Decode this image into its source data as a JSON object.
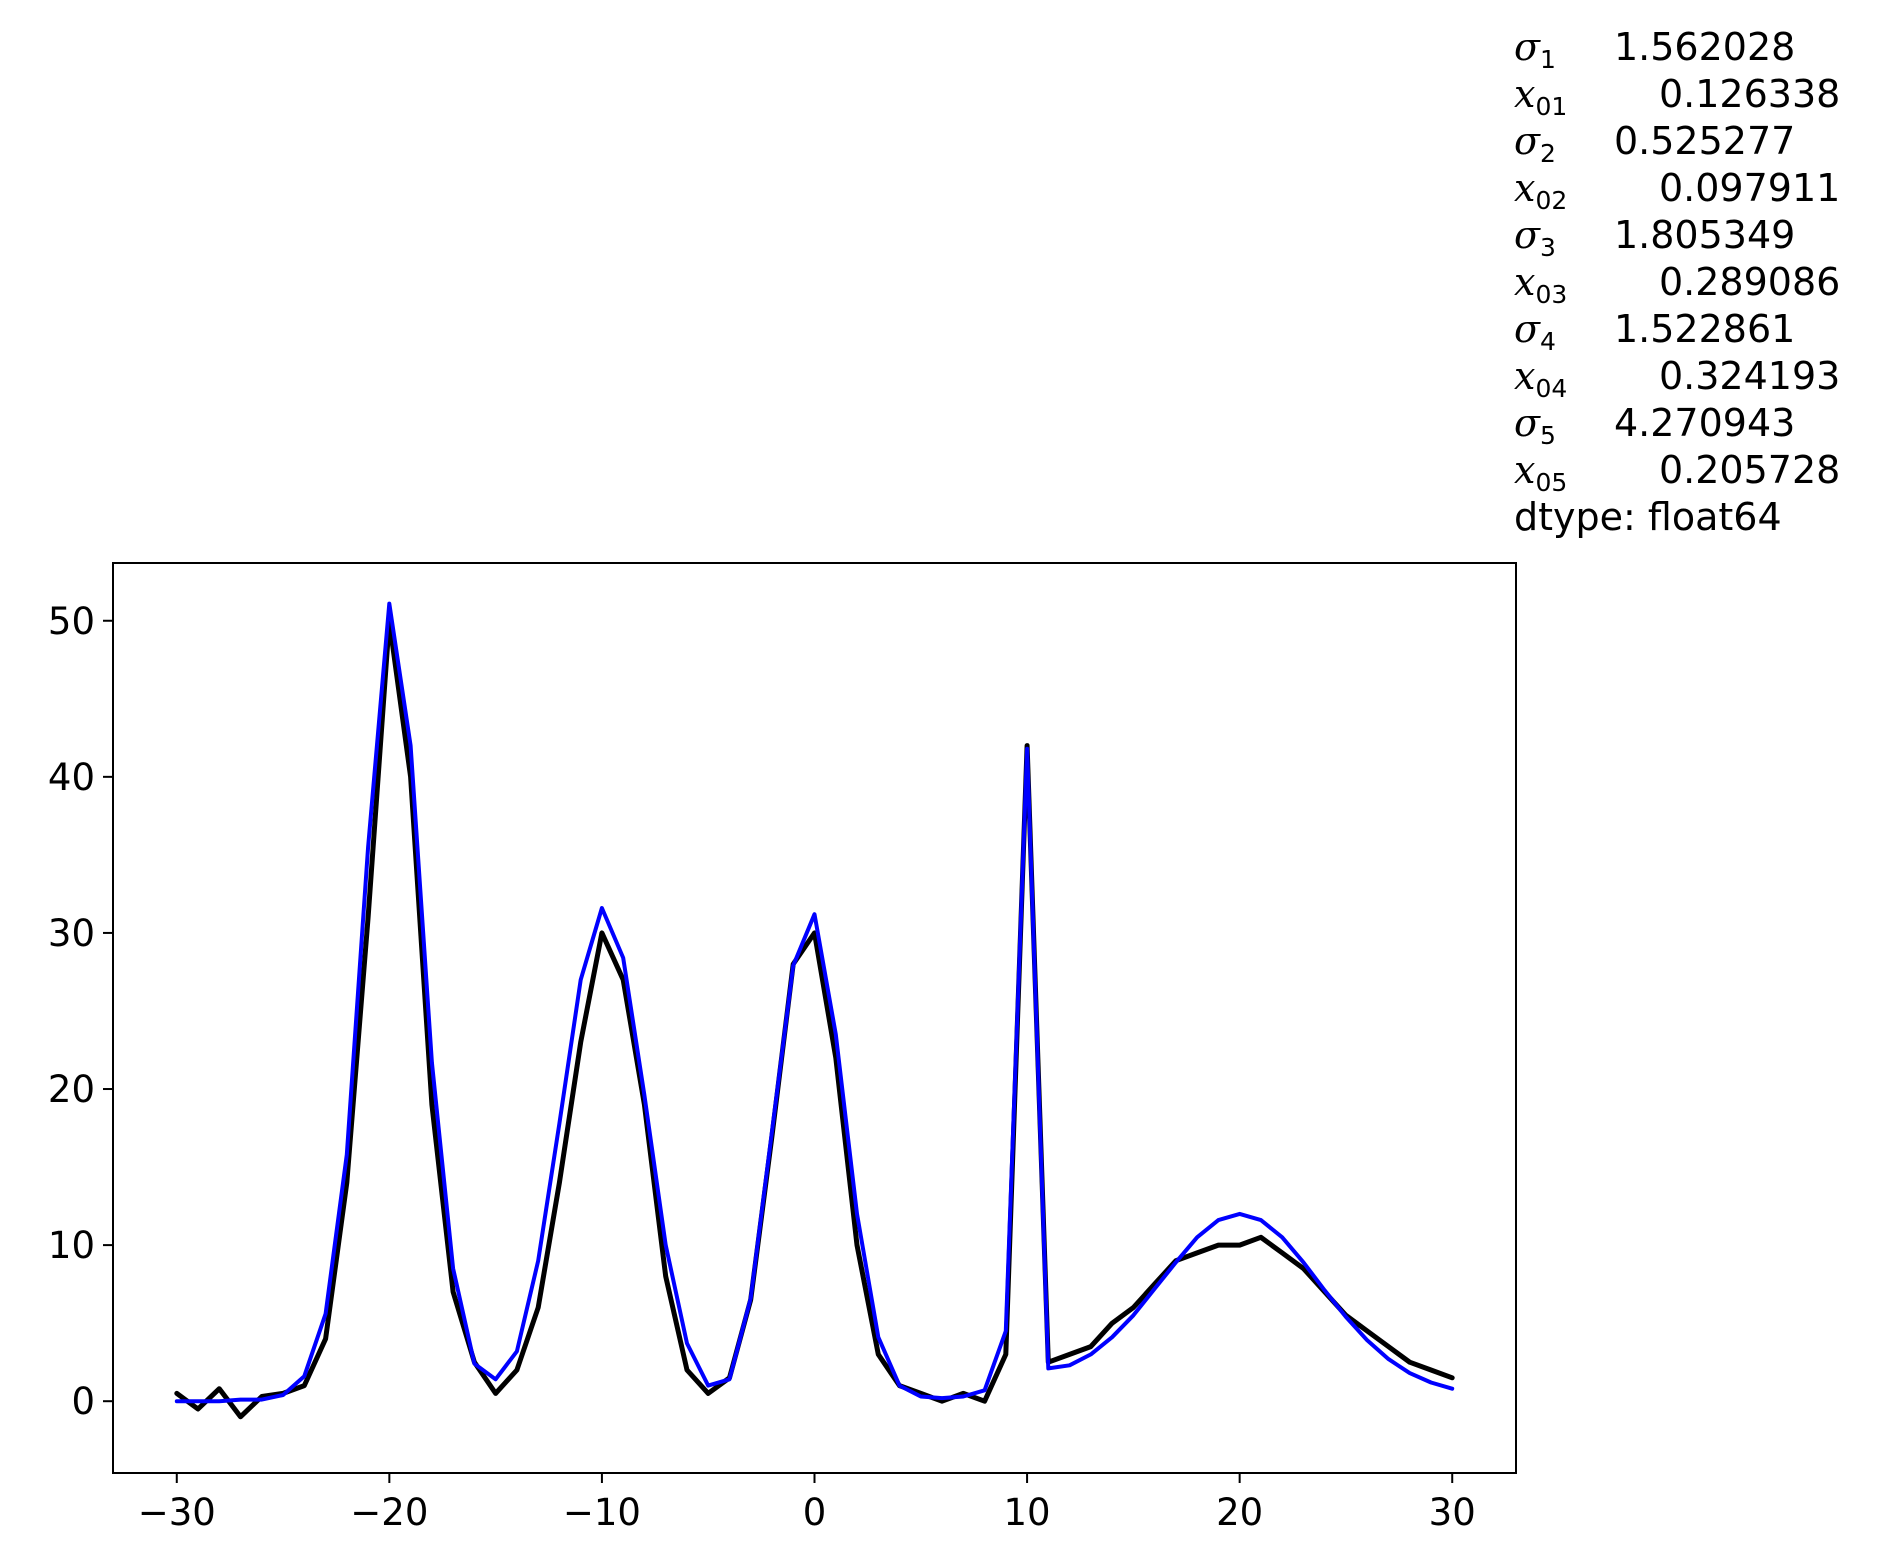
{
  "chart_data": {
    "type": "line",
    "title": "",
    "xlabel": "",
    "ylabel": "",
    "xlim": [
      -33,
      33
    ],
    "ylim": [
      -4.6,
      53.7
    ],
    "x_ticks": [
      -30,
      -20,
      -10,
      0,
      10,
      20,
      30
    ],
    "x_tick_labels": [
      "−30",
      "−20",
      "−10",
      "0",
      "10",
      "20",
      "30"
    ],
    "y_ticks": [
      0,
      10,
      20,
      30,
      40,
      50
    ],
    "y_tick_labels": [
      "0",
      "10",
      "20",
      "30",
      "40",
      "50"
    ],
    "grid": false,
    "series": [
      {
        "role": "data",
        "color": "#000000",
        "x": [
          -30,
          -29,
          -28,
          -27,
          -26,
          -25,
          -24,
          -23,
          -22,
          -21,
          -20,
          -19,
          -18,
          -17,
          -16,
          -15,
          -14,
          -13,
          -12,
          -11,
          -10,
          -9,
          -8,
          -7,
          -6,
          -5,
          -4,
          -3,
          -2,
          -1,
          0,
          1,
          2,
          3,
          4,
          5,
          6,
          7,
          8,
          9,
          10,
          11,
          12,
          13,
          14,
          15,
          16,
          17,
          18,
          19,
          20,
          21,
          22,
          23,
          24,
          25,
          26,
          27,
          28,
          29,
          30
        ],
        "y": [
          0.5,
          -0.5,
          0.8,
          -1.0,
          0.3,
          0.5,
          1.0,
          4.0,
          14.0,
          31.0,
          50.0,
          40.0,
          19.0,
          7.0,
          2.5,
          0.5,
          2.0,
          6.0,
          14.0,
          23.0,
          30.0,
          27.0,
          19.0,
          8.0,
          2.0,
          0.5,
          1.5,
          6.5,
          17.0,
          28.0,
          30.0,
          22.0,
          10.0,
          3.0,
          1.0,
          0.5,
          0.0,
          0.5,
          0.0,
          3.0,
          42.0,
          2.5,
          3.0,
          3.5,
          5.0,
          6.0,
          7.5,
          9.0,
          9.5,
          10.0,
          10.0,
          10.5,
          9.5,
          8.5,
          7.0,
          5.5,
          4.5,
          3.5,
          2.5,
          2.0,
          1.5
        ]
      },
      {
        "role": "fit",
        "color": "#0000ff",
        "x": [
          -30,
          -29,
          -28,
          -27,
          -26,
          -25,
          -24,
          -23,
          -22,
          -21,
          -20,
          -19,
          -18,
          -17,
          -16,
          -15,
          -14,
          -13,
          -12,
          -11,
          -10,
          -9,
          -8,
          -7,
          -6,
          -5,
          -4,
          -3,
          -2,
          -1,
          0,
          1,
          2,
          3,
          4,
          5,
          6,
          7,
          8,
          9,
          10,
          11,
          12,
          13,
          14,
          15,
          16,
          17,
          18,
          19,
          20,
          21,
          22,
          23,
          24,
          25,
          26,
          27,
          28,
          29,
          30
        ],
        "y": [
          0.0,
          0.0,
          0.0,
          0.1,
          0.1,
          0.4,
          1.6,
          5.6,
          15.8,
          35.5,
          51.1,
          42.0,
          21.7,
          8.5,
          2.4,
          1.4,
          3.2,
          9.0,
          17.8,
          27.0,
          31.6,
          28.4,
          19.6,
          10.0,
          3.7,
          1.0,
          1.4,
          6.6,
          17.3,
          27.9,
          31.2,
          23.5,
          12.0,
          4.1,
          1.0,
          0.3,
          0.2,
          0.3,
          0.7,
          4.5,
          41.8,
          2.1,
          2.3,
          3.0,
          4.1,
          5.5,
          7.2,
          8.9,
          10.5,
          11.6,
          12.0,
          11.6,
          10.5,
          8.9,
          7.1,
          5.4,
          3.9,
          2.7,
          1.8,
          1.2,
          0.8
        ]
      }
    ]
  },
  "legend_text": {
    "rows": [
      {
        "symbol": "σ",
        "sub": "1",
        "value": "1.562028"
      },
      {
        "symbol": "x",
        "sub": "01",
        "value": "0.126338"
      },
      {
        "symbol": "σ",
        "sub": "2",
        "value": "0.525277"
      },
      {
        "symbol": "x",
        "sub": "02",
        "value": "0.097911"
      },
      {
        "symbol": "σ",
        "sub": "3",
        "value": "1.805349"
      },
      {
        "symbol": "x",
        "sub": "03",
        "value": "0.289086"
      },
      {
        "symbol": "σ",
        "sub": "4",
        "value": "1.522861"
      },
      {
        "symbol": "x",
        "sub": "04",
        "value": "0.324193"
      },
      {
        "symbol": "σ",
        "sub": "5",
        "value": "4.270943"
      },
      {
        "symbol": "x",
        "sub": "05",
        "value": "0.205728"
      }
    ],
    "dtype": "dtype: float64"
  }
}
